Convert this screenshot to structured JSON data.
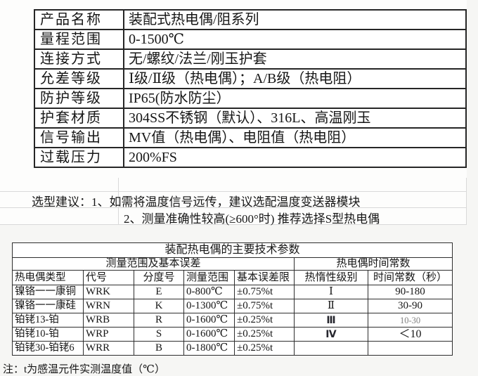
{
  "colors": {
    "table_border_dark": "#262626",
    "table_border_thin": "#2e2e2e",
    "faint_grid": "#d9d9d9",
    "muted_text": "#808080",
    "background": "#f6f6f4"
  },
  "spec_table": {
    "rows": [
      {
        "label": "产品名称",
        "value": "装配式热电偶/阻系列"
      },
      {
        "label": "量程范围",
        "value": "0-1500℃"
      },
      {
        "label": "连接方式",
        "value": "无/螺纹/法兰/刚玉护套"
      },
      {
        "label": "允差等级",
        "value": "Ⅰ级/Ⅱ级（热电偶）；A/B级（热电阻）"
      },
      {
        "label": "防护等级",
        "value": "IP65(防水防尘）"
      },
      {
        "label": "护套材质",
        "value": "304SS不锈钢（默认）、316L、高温刚玉"
      },
      {
        "label": "信号输出",
        "value": "MV值（热电偶）、电阻值（热电阻）"
      },
      {
        "label": "过载压力",
        "value": "200%FS"
      }
    ]
  },
  "notes": {
    "line1": "选型建议：1、如需将温度信号远传，建议选配温度变送器模块",
    "line2": "2、测量准确性较高(≥600°时) 推荐选择S型热电偶"
  },
  "tech_table": {
    "title": "装配热电偶的主要技术参数",
    "group_headers": [
      {
        "label": "测量范围及基本误差",
        "span": 5
      },
      {
        "label": "热电偶时间常数",
        "span": 2
      }
    ],
    "columns": [
      "热电偶类型",
      "代号",
      "分度号",
      "测量范围",
      "基本误差限",
      "热惰性级别",
      "时间常数（秒）"
    ],
    "rows": [
      [
        "镍铬一一康铜",
        "WRK",
        "E",
        "0-800℃",
        "±0.75%t",
        "Ⅰ",
        "90-180"
      ],
      [
        "镍铬一一康硅",
        "WRN",
        "K",
        "0-1300℃",
        "±0.75%t",
        "Ⅱ",
        "30-90"
      ],
      [
        "铂铑13-铂",
        "WRB",
        "R",
        "0-1600℃",
        "±0.25%t",
        "Ⅲ",
        "10-30"
      ],
      [
        "铂铑10-铂",
        "WRP",
        "S",
        "0-1600℃",
        "±0.25%t",
        "Ⅳ",
        "＜10"
      ],
      [
        "铂铑30-铂铑6",
        "WRR",
        "B",
        "0-1800℃",
        "±0.25%t",
        "",
        ""
      ]
    ]
  },
  "footnote": "注：t为感温元件实测温度值（℃）"
}
